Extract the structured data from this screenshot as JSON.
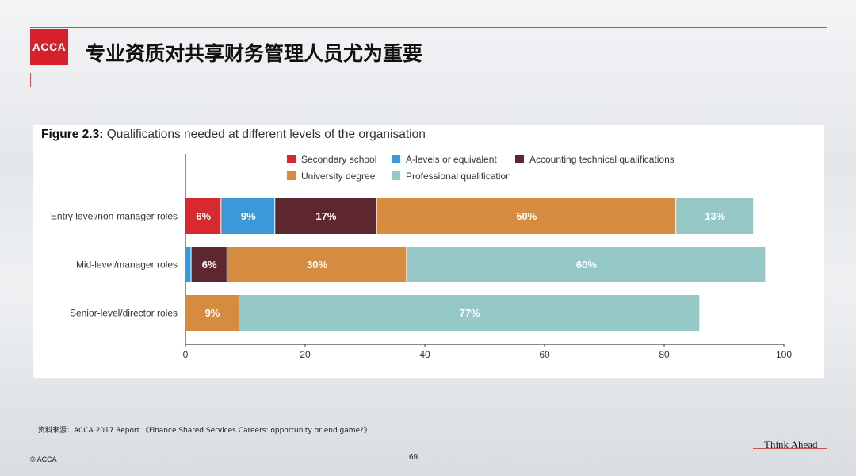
{
  "logo": {
    "text": "ACCA"
  },
  "slide": {
    "title": "专业资质对共享财务管理人员尤为重要",
    "source": "资料来源：ACCA 2017 Report 《Finance Shared Services Careers: opportunity or end game?》",
    "tagline": "Think Ahead",
    "copyright": "© ACCA",
    "page_number": "69"
  },
  "figure": {
    "label": "Figure 2.3:",
    "caption": "Qualifications needed at different levels of the organisation"
  },
  "colors": {
    "Secondary school": "#d62a30",
    "A-levels or equivalent": "#3a9ad9",
    "Accounting technical qualifications": "#5e2730",
    "University degree": "#d58c40",
    "Professional qualification": "#96c8c8"
  },
  "chart_data": {
    "type": "bar",
    "orientation": "horizontal",
    "stacked": true,
    "title": "Qualifications needed at different levels of the organisation",
    "categories": [
      "Entry level/non-manager roles",
      "Mid-level/manager roles",
      "Senior-level/director roles"
    ],
    "series": [
      {
        "name": "Secondary school",
        "values": [
          6,
          0,
          0
        ],
        "labels": [
          "6%",
          "",
          ""
        ]
      },
      {
        "name": "A-levels or equivalent",
        "values": [
          9,
          1,
          0
        ],
        "labels": [
          "9%",
          "",
          ""
        ]
      },
      {
        "name": "Accounting technical qualifications",
        "values": [
          17,
          6,
          0
        ],
        "labels": [
          "17%",
          "6%",
          ""
        ]
      },
      {
        "name": "University degree",
        "values": [
          50,
          30,
          9
        ],
        "labels": [
          "50%",
          "30%",
          "9%"
        ]
      },
      {
        "name": "Professional qualification",
        "values": [
          13,
          60,
          77
        ],
        "labels": [
          "13%",
          "60%",
          "77%"
        ]
      }
    ],
    "xlim": [
      0,
      100
    ],
    "xticks": [
      "0",
      "20",
      "40",
      "60",
      "80",
      "100"
    ],
    "legend_position": "top",
    "grid": false
  }
}
